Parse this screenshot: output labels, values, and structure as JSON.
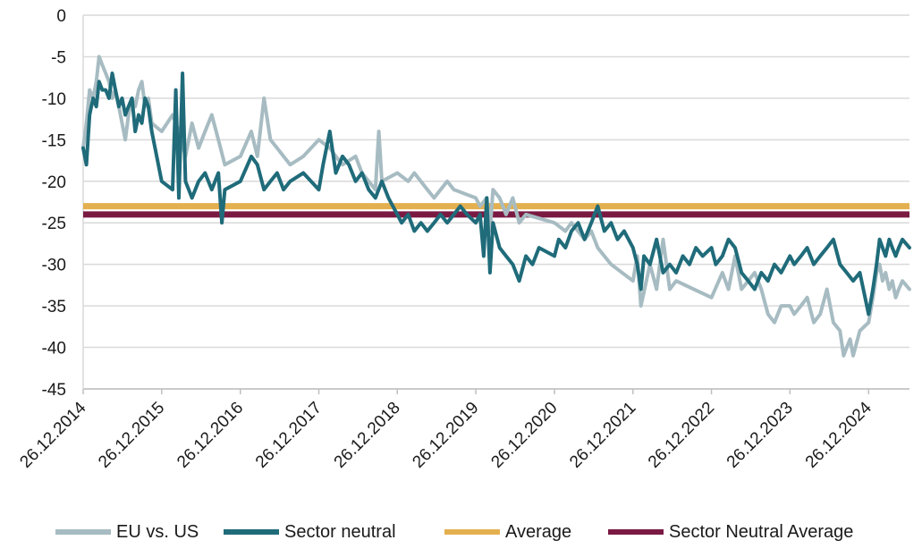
{
  "chart_data": {
    "type": "line",
    "ylim": [
      -45,
      0
    ],
    "yticks": [
      0,
      -5,
      -10,
      -15,
      -20,
      -25,
      -30,
      -35,
      -40,
      -45
    ],
    "ytick_labels": [
      "0",
      "-5",
      "-10",
      "-15",
      "-20",
      "-25",
      "-30",
      "-35",
      "-40",
      "-45"
    ],
    "xlim": [
      "26.12.2014",
      "04.07.2025"
    ],
    "xtick_labels": [
      "26.12.2014",
      "26.12.2015",
      "26.12.2016",
      "26.12.2017",
      "26.12.2018",
      "26.12.2019",
      "26.12.2020",
      "26.12.2021",
      "26.12.2022",
      "26.12.2023",
      "26.12.2024"
    ],
    "grid": true,
    "legend_position": "bottom",
    "series": [
      {
        "name": "EU vs. US",
        "color": "#a7bcc2",
        "points": [
          [
            "26.12.2014",
            -16
          ],
          [
            "10.01.2015",
            -13
          ],
          [
            "25.01.2015",
            -9
          ],
          [
            "10.02.2015",
            -10
          ],
          [
            "25.02.2015",
            -8
          ],
          [
            "10.03.2015",
            -5
          ],
          [
            "25.03.2015",
            -6
          ],
          [
            "10.04.2015",
            -7
          ],
          [
            "25.04.2015",
            -8
          ],
          [
            "10.05.2015",
            -10
          ],
          [
            "25.05.2015",
            -9
          ],
          [
            "10.06.2015",
            -11
          ],
          [
            "25.06.2015",
            -13
          ],
          [
            "10.07.2015",
            -15
          ],
          [
            "25.07.2015",
            -12
          ],
          [
            "10.08.2015",
            -10
          ],
          [
            "25.08.2015",
            -11
          ],
          [
            "10.09.2015",
            -9
          ],
          [
            "25.09.2015",
            -8
          ],
          [
            "10.10.2015",
            -11
          ],
          [
            "25.10.2015",
            -10
          ],
          [
            "10.11.2015",
            -13
          ],
          [
            "26.12.2015",
            -14
          ],
          [
            "15.02.2016",
            -12
          ],
          [
            "15.03.2016",
            -14
          ],
          [
            "15.04.2016",
            -17
          ],
          [
            "15.05.2016",
            -13
          ],
          [
            "15.06.2016",
            -16
          ],
          [
            "15.07.2016",
            -14
          ],
          [
            "15.08.2016",
            -12
          ],
          [
            "15.09.2016",
            -15
          ],
          [
            "15.10.2016",
            -18
          ],
          [
            "26.12.2016",
            -17
          ],
          [
            "15.02.2017",
            -14
          ],
          [
            "15.03.2017",
            -17
          ],
          [
            "15.04.2017",
            -10
          ],
          [
            "15.05.2017",
            -15
          ],
          [
            "15.06.2017",
            -16
          ],
          [
            "15.07.2017",
            -17
          ],
          [
            "15.08.2017",
            -18
          ],
          [
            "15.10.2017",
            -17
          ],
          [
            "26.12.2017",
            -15
          ],
          [
            "15.02.2018",
            -16
          ],
          [
            "15.03.2018",
            -17
          ],
          [
            "15.04.2018",
            -18
          ],
          [
            "15.06.2018",
            -17
          ],
          [
            "15.07.2018",
            -19
          ],
          [
            "15.09.2018",
            -21
          ],
          [
            "01.10.2018",
            -14
          ],
          [
            "15.10.2018",
            -20
          ],
          [
            "26.12.2018",
            -19
          ],
          [
            "15.02.2019",
            -20
          ],
          [
            "15.03.2019",
            -19
          ],
          [
            "15.05.2019",
            -21
          ],
          [
            "15.06.2019",
            -22
          ],
          [
            "15.08.2019",
            -20
          ],
          [
            "15.09.2019",
            -21
          ],
          [
            "26.12.2019",
            -22
          ],
          [
            "15.01.2020",
            -23
          ],
          [
            "15.02.2020",
            -22
          ],
          [
            "01.03.2020",
            -26
          ],
          [
            "15.03.2020",
            -21
          ],
          [
            "15.04.2020",
            -22
          ],
          [
            "15.05.2020",
            -24
          ],
          [
            "15.06.2020",
            -22
          ],
          [
            "15.07.2020",
            -25
          ],
          [
            "15.08.2020",
            -24
          ],
          [
            "26.12.2020",
            -25
          ],
          [
            "15.02.2021",
            -26
          ],
          [
            "15.03.2021",
            -25
          ],
          [
            "15.05.2021",
            -27
          ],
          [
            "15.06.2021",
            -26
          ],
          [
            "15.07.2021",
            -28
          ],
          [
            "15.09.2021",
            -30
          ],
          [
            "26.12.2021",
            -32
          ],
          [
            "15.01.2022",
            -29
          ],
          [
            "01.02.2022",
            -35
          ],
          [
            "15.03.2022",
            -30
          ],
          [
            "15.04.2022",
            -33
          ],
          [
            "15.05.2022",
            -27
          ],
          [
            "15.06.2022",
            -33
          ],
          [
            "15.07.2022",
            -32
          ],
          [
            "26.12.2022",
            -34
          ],
          [
            "15.02.2023",
            -31
          ],
          [
            "15.03.2023",
            -33
          ],
          [
            "15.04.2023",
            -29
          ],
          [
            "15.05.2023",
            -33
          ],
          [
            "15.06.2023",
            -32
          ],
          [
            "15.07.2023",
            -31
          ],
          [
            "15.08.2023",
            -33
          ],
          [
            "15.09.2023",
            -36
          ],
          [
            "15.10.2023",
            -37
          ],
          [
            "15.11.2023",
            -35
          ],
          [
            "26.12.2023",
            -35
          ],
          [
            "15.01.2024",
            -36
          ],
          [
            "15.02.2024",
            -35
          ],
          [
            "15.03.2024",
            -34
          ],
          [
            "15.04.2024",
            -37
          ],
          [
            "15.05.2024",
            -36
          ],
          [
            "15.06.2024",
            -33
          ],
          [
            "15.07.2024",
            -37
          ],
          [
            "15.08.2024",
            -38
          ],
          [
            "01.09.2024",
            -41
          ],
          [
            "15.09.2024",
            -40
          ],
          [
            "01.10.2024",
            -39
          ],
          [
            "15.10.2024",
            -41
          ],
          [
            "15.11.2024",
            -38
          ],
          [
            "26.12.2024",
            -37
          ],
          [
            "15.01.2025",
            -34
          ],
          [
            "01.02.2025",
            -31
          ],
          [
            "15.02.2025",
            -30
          ],
          [
            "01.03.2025",
            -32
          ],
          [
            "15.03.2025",
            -31
          ],
          [
            "01.04.2025",
            -33
          ],
          [
            "15.04.2025",
            -32
          ],
          [
            "01.05.2025",
            -34
          ],
          [
            "15.05.2025",
            -33
          ],
          [
            "01.06.2025",
            -32
          ],
          [
            "04.07.2025",
            -33
          ]
        ]
      },
      {
        "name": "Sector neutral",
        "color": "#1f6b7a",
        "points": [
          [
            "26.12.2014",
            -16
          ],
          [
            "10.01.2015",
            -18
          ],
          [
            "25.01.2015",
            -12
          ],
          [
            "10.02.2015",
            -10
          ],
          [
            "25.02.2015",
            -11
          ],
          [
            "10.03.2015",
            -8
          ],
          [
            "25.03.2015",
            -9
          ],
          [
            "10.04.2015",
            -9
          ],
          [
            "25.04.2015",
            -10
          ],
          [
            "10.05.2015",
            -7
          ],
          [
            "25.05.2015",
            -9
          ],
          [
            "10.06.2015",
            -11
          ],
          [
            "25.06.2015",
            -10
          ],
          [
            "10.07.2015",
            -12
          ],
          [
            "25.07.2015",
            -11
          ],
          [
            "10.08.2015",
            -10
          ],
          [
            "25.08.2015",
            -14
          ],
          [
            "10.09.2015",
            -12
          ],
          [
            "25.09.2015",
            -13
          ],
          [
            "10.10.2015",
            -10
          ],
          [
            "25.10.2015",
            -11
          ],
          [
            "10.11.2015",
            -14
          ],
          [
            "26.12.2015",
            -20
          ],
          [
            "15.02.2016",
            -21
          ],
          [
            "01.03.2016",
            -9
          ],
          [
            "15.03.2016",
            -22
          ],
          [
            "01.04.2016",
            -7
          ],
          [
            "15.04.2016",
            -20
          ],
          [
            "15.05.2016",
            -22
          ],
          [
            "15.06.2016",
            -20
          ],
          [
            "15.07.2016",
            -19
          ],
          [
            "15.08.2016",
            -21
          ],
          [
            "15.09.2016",
            -19
          ],
          [
            "01.10.2016",
            -25
          ],
          [
            "15.10.2016",
            -21
          ],
          [
            "26.12.2016",
            -20
          ],
          [
            "15.02.2017",
            -17
          ],
          [
            "15.03.2017",
            -18
          ],
          [
            "15.04.2017",
            -21
          ],
          [
            "15.05.2017",
            -20
          ],
          [
            "15.06.2017",
            -19
          ],
          [
            "15.07.2017",
            -21
          ],
          [
            "15.08.2017",
            -20
          ],
          [
            "15.10.2017",
            -19
          ],
          [
            "26.12.2017",
            -21
          ],
          [
            "15.01.2018",
            -18
          ],
          [
            "15.02.2018",
            -14
          ],
          [
            "15.03.2018",
            -19
          ],
          [
            "15.04.2018",
            -17
          ],
          [
            "15.05.2018",
            -18
          ],
          [
            "15.06.2018",
            -20
          ],
          [
            "15.07.2018",
            -19
          ],
          [
            "15.08.2018",
            -21
          ],
          [
            "15.09.2018",
            -22
          ],
          [
            "15.10.2018",
            -20
          ],
          [
            "15.11.2018",
            -22
          ],
          [
            "26.12.2018",
            -24
          ],
          [
            "15.01.2019",
            -25
          ],
          [
            "15.02.2019",
            -24
          ],
          [
            "15.03.2019",
            -26
          ],
          [
            "15.04.2019",
            -25
          ],
          [
            "15.05.2019",
            -26
          ],
          [
            "15.06.2019",
            -25
          ],
          [
            "15.07.2019",
            -24
          ],
          [
            "15.08.2019",
            -25
          ],
          [
            "15.09.2019",
            -24
          ],
          [
            "15.10.2019",
            -23
          ],
          [
            "15.11.2019",
            -24
          ],
          [
            "26.12.2019",
            -25
          ],
          [
            "15.01.2020",
            -24
          ],
          [
            "01.02.2020",
            -29
          ],
          [
            "15.02.2020",
            -22
          ],
          [
            "01.03.2020",
            -31
          ],
          [
            "15.03.2020",
            -25
          ],
          [
            "15.04.2020",
            -28
          ],
          [
            "15.05.2020",
            -29
          ],
          [
            "15.06.2020",
            -30
          ],
          [
            "15.07.2020",
            -32
          ],
          [
            "15.08.2020",
            -29
          ],
          [
            "15.09.2020",
            -30
          ],
          [
            "15.10.2020",
            -28
          ],
          [
            "26.12.2020",
            -29
          ],
          [
            "15.01.2021",
            -27
          ],
          [
            "15.02.2021",
            -28
          ],
          [
            "15.03.2021",
            -26
          ],
          [
            "15.04.2021",
            -25
          ],
          [
            "15.05.2021",
            -27
          ],
          [
            "15.06.2021",
            -25
          ],
          [
            "15.07.2021",
            -23
          ],
          [
            "15.08.2021",
            -26
          ],
          [
            "15.09.2021",
            -25
          ],
          [
            "15.10.2021",
            -27
          ],
          [
            "15.11.2021",
            -26
          ],
          [
            "26.12.2021",
            -28
          ],
          [
            "15.01.2022",
            -30
          ],
          [
            "01.02.2022",
            -33
          ],
          [
            "15.02.2022",
            -29
          ],
          [
            "15.03.2022",
            -30
          ],
          [
            "15.04.2022",
            -27
          ],
          [
            "15.05.2022",
            -31
          ],
          [
            "15.06.2022",
            -30
          ],
          [
            "15.07.2022",
            -31
          ],
          [
            "15.08.2022",
            -29
          ],
          [
            "15.09.2022",
            -30
          ],
          [
            "15.10.2022",
            -28
          ],
          [
            "15.11.2022",
            -29
          ],
          [
            "26.12.2022",
            -28
          ],
          [
            "15.01.2023",
            -30
          ],
          [
            "15.02.2023",
            -29
          ],
          [
            "15.03.2023",
            -27
          ],
          [
            "15.04.2023",
            -28
          ],
          [
            "15.05.2023",
            -31
          ],
          [
            "15.06.2023",
            -32
          ],
          [
            "15.07.2023",
            -33
          ],
          [
            "15.08.2023",
            -31
          ],
          [
            "15.09.2023",
            -32
          ],
          [
            "15.10.2023",
            -30
          ],
          [
            "15.11.2023",
            -31
          ],
          [
            "26.12.2023",
            -29
          ],
          [
            "15.01.2024",
            -30
          ],
          [
            "15.02.2024",
            -29
          ],
          [
            "15.03.2024",
            -28
          ],
          [
            "15.04.2024",
            -30
          ],
          [
            "15.05.2024",
            -29
          ],
          [
            "15.06.2024",
            -28
          ],
          [
            "15.07.2024",
            -27
          ],
          [
            "15.08.2024",
            -30
          ],
          [
            "15.09.2024",
            -31
          ],
          [
            "15.10.2024",
            -32
          ],
          [
            "15.11.2024",
            -31
          ],
          [
            "26.12.2024",
            -36
          ],
          [
            "15.01.2025",
            -33
          ],
          [
            "01.02.2025",
            -30
          ],
          [
            "15.02.2025",
            -27
          ],
          [
            "01.03.2025",
            -28
          ],
          [
            "15.03.2025",
            -29
          ],
          [
            "01.04.2025",
            -27
          ],
          [
            "15.04.2025",
            -28
          ],
          [
            "01.05.2025",
            -29
          ],
          [
            "15.05.2025",
            -28
          ],
          [
            "01.06.2025",
            -27
          ],
          [
            "04.07.2025",
            -28
          ]
        ]
      },
      {
        "name": "Average",
        "color": "#e4b04f",
        "constant": -23
      },
      {
        "name": "Sector Neutral Average",
        "color": "#7a1a43",
        "constant": -24
      }
    ]
  }
}
